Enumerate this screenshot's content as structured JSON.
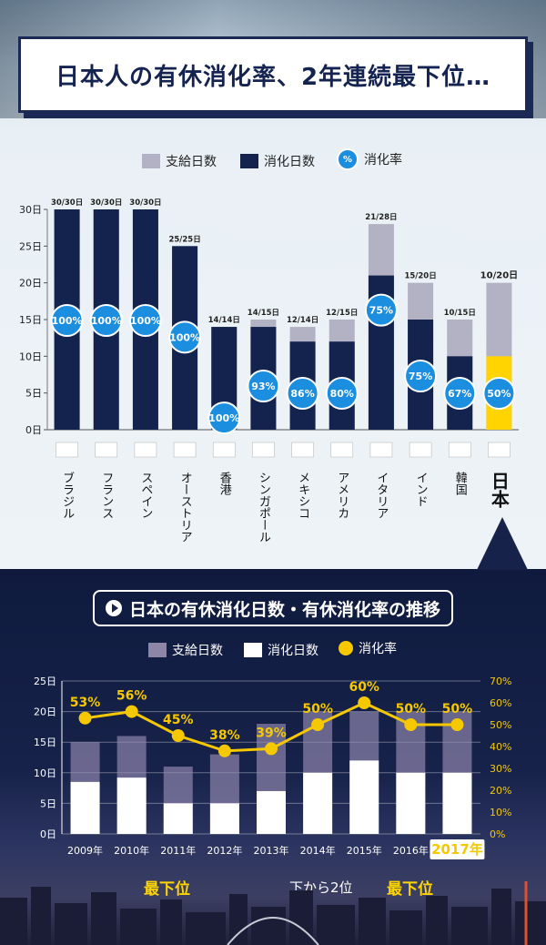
{
  "title": "日本人の有休消化率、2年連続最下位…",
  "legend_top": {
    "granted": "支給日数",
    "used": "消化日数",
    "rate_icon": "%",
    "rate": "消化率"
  },
  "subtitle": "日本の有休消化日数・有休消化率の推移",
  "legend_bottom": {
    "granted": "支給日数",
    "used": "消化日数",
    "rate": "消化率"
  },
  "ranks": {
    "first": "最下位",
    "middle": "下から2位",
    "last": "最下位"
  },
  "colors": {
    "granted": "#b3b1c4",
    "used_top": "#13234e",
    "used_japan": "#ffd400",
    "rate": "#f5c800",
    "rate_circle": "#1c8ee0"
  },
  "chart_data": [
    {
      "type": "bar",
      "categories": [
        "ブラジル",
        "フランス",
        "スペイン",
        "オーストリア",
        "香港",
        "シンガポール",
        "メキシコ",
        "アメリカ",
        "イタリア",
        "インド",
        "韓国",
        "日本"
      ],
      "series": [
        {
          "name": "支給日数",
          "values": [
            30,
            30,
            30,
            25,
            14,
            15,
            14,
            15,
            28,
            20,
            15,
            20
          ]
        },
        {
          "name": "消化日数",
          "values": [
            30,
            30,
            30,
            25,
            14,
            14,
            12,
            12,
            21,
            15,
            10,
            10
          ]
        },
        {
          "name": "消化率",
          "values": [
            100,
            100,
            100,
            100,
            100,
            93,
            86,
            80,
            75,
            75,
            67,
            50
          ]
        }
      ],
      "bar_labels": [
        "30/30日",
        "30/30日",
        "30/30日",
        "25/25日",
        "14/14日",
        "14/15日",
        "12/14日",
        "12/15日",
        "21/28日",
        "15/20日",
        "10/15日",
        "10/20日"
      ],
      "rate_labels": [
        "100%",
        "100%",
        "100%",
        "100%",
        "100%",
        "93%",
        "86%",
        "80%",
        "75%",
        "75%",
        "67%",
        "50%"
      ],
      "yticks": [
        "0日",
        "5日",
        "10日",
        "15日",
        "20日",
        "25日",
        "30日"
      ],
      "ylim": [
        0,
        30
      ]
    },
    {
      "type": "bar",
      "categories": [
        "2009年",
        "2010年",
        "2011年",
        "2012年",
        "2013年",
        "2014年",
        "2015年",
        "2016年",
        "2017年"
      ],
      "series": [
        {
          "name": "支給日数",
          "values": [
            15,
            16,
            11,
            13,
            18,
            20,
            20,
            20,
            20
          ]
        },
        {
          "name": "消化日数",
          "values": [
            8.5,
            9.2,
            5,
            5,
            7,
            10,
            12,
            10,
            10
          ]
        },
        {
          "name": "消化率",
          "values": [
            53,
            56,
            45,
            38,
            39,
            50,
            60,
            50,
            50
          ]
        }
      ],
      "rate_labels": [
        "53%",
        "56%",
        "45%",
        "38%",
        "39%",
        "50%",
        "60%",
        "50%",
        "50%"
      ],
      "yticks": [
        "0日",
        "5日",
        "10日",
        "15日",
        "20日",
        "25日"
      ],
      "y2ticks": [
        "0%",
        "10%",
        "20%",
        "30%",
        "40%",
        "50%",
        "60%",
        "70%"
      ],
      "ylim": [
        0,
        25
      ],
      "y2lim": [
        0,
        70
      ]
    }
  ]
}
